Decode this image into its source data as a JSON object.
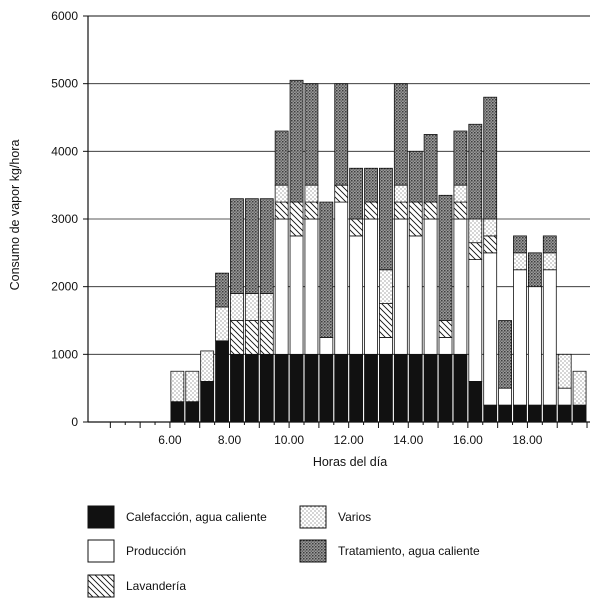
{
  "chart_data": {
    "type": "bar",
    "stacked": true,
    "title": "",
    "xlabel": "Horas del día",
    "ylabel": "Consumo de vapor kg/hora",
    "ylim": [
      0,
      6000
    ],
    "yticks": [
      0,
      1000,
      2000,
      3000,
      4000,
      5000,
      6000
    ],
    "ytick_labels": [
      "0",
      "1000",
      "2000",
      "3000",
      "4000",
      "5000",
      "6000"
    ],
    "xticks": [
      6,
      8,
      10,
      12,
      14,
      16,
      18
    ],
    "xtick_labels": [
      "6.00",
      "8.00",
      "10.00",
      "12.00",
      "14.00",
      "16.00",
      "18.00"
    ],
    "xlim": [
      3.25,
      20.1
    ],
    "grid": "horizontal",
    "x": [
      6.25,
      6.75,
      7.25,
      7.75,
      8.25,
      8.75,
      9.25,
      9.75,
      10.25,
      10.75,
      11.25,
      11.75,
      12.25,
      12.75,
      13.25,
      13.75,
      14.25,
      14.75,
      15.25,
      15.75,
      16.25,
      16.75,
      17.25,
      17.75,
      18.25,
      18.75,
      19.25,
      19.75
    ],
    "series": [
      {
        "name": "Calefacción, agua caliente",
        "pattern": "solid",
        "values": [
          300,
          300,
          600,
          1200,
          1000,
          1000,
          1000,
          1000,
          1000,
          1000,
          1000,
          1000,
          1000,
          1000,
          1000,
          1000,
          1000,
          1000,
          1000,
          1000,
          600,
          250,
          250,
          250,
          250,
          250,
          250,
          250
        ]
      },
      {
        "name": "Producción",
        "pattern": "empty",
        "values": [
          0,
          0,
          0,
          0,
          0,
          0,
          0,
          2000,
          1750,
          2000,
          250,
          2250,
          1750,
          2000,
          250,
          2000,
          1750,
          2000,
          250,
          2000,
          1800,
          2250,
          250,
          2000,
          1750,
          2000,
          250,
          0
        ]
      },
      {
        "name": "Lavandería",
        "pattern": "hatch",
        "values": [
          0,
          0,
          0,
          0,
          500,
          500,
          500,
          250,
          500,
          250,
          0,
          250,
          250,
          250,
          500,
          250,
          500,
          250,
          250,
          250,
          250,
          250,
          0,
          0,
          0,
          0,
          0,
          0
        ]
      },
      {
        "name": "Varios",
        "pattern": "dots",
        "values": [
          450,
          450,
          450,
          500,
          400,
          400,
          400,
          250,
          0,
          250,
          0,
          0,
          0,
          0,
          500,
          250,
          0,
          0,
          0,
          250,
          350,
          250,
          0,
          250,
          0,
          250,
          500,
          500
        ]
      },
      {
        "name": "Tratamiento, agua caliente",
        "pattern": "heavy-dots",
        "values": [
          0,
          0,
          0,
          500,
          1400,
          1400,
          1400,
          800,
          1800,
          1500,
          2000,
          1500,
          750,
          500,
          1500,
          1500,
          750,
          1000,
          1850,
          800,
          1400,
          1800,
          1000,
          250,
          500,
          250,
          0,
          0
        ]
      }
    ]
  }
}
